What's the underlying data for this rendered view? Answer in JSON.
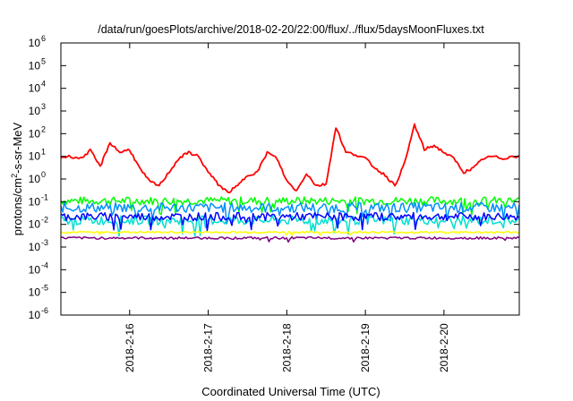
{
  "chart_data": {
    "type": "line",
    "title": "/data/run/goesPlots/archive/2018-02-20/22:00/flux/../flux/5daysMoonFluxes.txt",
    "xlabel": "Coordinated Universal Time (UTC)",
    "ylabel": {
      "base": "protons/cm",
      "superscript": "2",
      "rest": "-s-sr-MeV"
    },
    "y_scale": "log",
    "ylim": [
      1e-06,
      1000000.0
    ],
    "y_ticks": [
      {
        "exp": "-6",
        "value": 1e-06
      },
      {
        "exp": "-5",
        "value": 1e-05
      },
      {
        "exp": "-4",
        "value": 0.0001
      },
      {
        "exp": "-3",
        "value": 0.001
      },
      {
        "exp": "-2",
        "value": 0.01
      },
      {
        "exp": "-1",
        "value": 0.1
      },
      {
        "exp": "0",
        "value": 1
      },
      {
        "exp": "1",
        "value": 10
      },
      {
        "exp": "2",
        "value": 100
      },
      {
        "exp": "3",
        "value": 1000
      },
      {
        "exp": "4",
        "value": 10000
      },
      {
        "exp": "5",
        "value": 100000
      },
      {
        "exp": "6",
        "value": 1000000
      }
    ],
    "y_tick_base": "10",
    "x_range": [
      "2018-02-15 03:00",
      "2018-02-20 23:00"
    ],
    "x_ticks": [
      {
        "label": "2018-2-16",
        "value": "2018-02-16"
      },
      {
        "label": "2018-2-17",
        "value": "2018-02-17"
      },
      {
        "label": "2018-2-18",
        "value": "2018-02-18"
      },
      {
        "label": "2018-2-19",
        "value": "2018-02-19"
      },
      {
        "label": "2018-2-20",
        "value": "2018-02-20"
      }
    ],
    "grid": false,
    "legend": "none",
    "series": [
      {
        "color": "#ff0000",
        "style": "smooth",
        "x": [
          "2018-02-15 03:00",
          "2018-02-15 06:00",
          "2018-02-15 09:00",
          "2018-02-15 12:00",
          "2018-02-15 15:00",
          "2018-02-15 18:00",
          "2018-02-15 21:00",
          "2018-02-16 00:00",
          "2018-02-16 03:00",
          "2018-02-16 06:00",
          "2018-02-16 09:00",
          "2018-02-16 12:00",
          "2018-02-16 15:00",
          "2018-02-16 18:00",
          "2018-02-16 21:00",
          "2018-02-17 00:00",
          "2018-02-17 03:00",
          "2018-02-17 06:00",
          "2018-02-17 09:00",
          "2018-02-17 12:00",
          "2018-02-17 15:00",
          "2018-02-17 18:00",
          "2018-02-17 21:00",
          "2018-02-18 00:00",
          "2018-02-18 03:00",
          "2018-02-18 06:00",
          "2018-02-18 09:00",
          "2018-02-18 12:00",
          "2018-02-18 15:00",
          "2018-02-18 18:00",
          "2018-02-18 21:00",
          "2018-02-19 00:00",
          "2018-02-19 03:00",
          "2018-02-19 06:00",
          "2018-02-19 09:00",
          "2018-02-19 12:00",
          "2018-02-19 15:00",
          "2018-02-19 18:00",
          "2018-02-19 21:00",
          "2018-02-20 00:00",
          "2018-02-20 03:00",
          "2018-02-20 06:00",
          "2018-02-20 09:00",
          "2018-02-20 12:00",
          "2018-02-20 15:00",
          "2018-02-20 18:00",
          "2018-02-20 21:00",
          "2018-02-20 23:00"
        ],
        "values": [
          9,
          10,
          8,
          18,
          3.5,
          40,
          15,
          20,
          3,
          0.8,
          0.5,
          2,
          8,
          15,
          10,
          2,
          0.6,
          0.25,
          0.5,
          1.5,
          2,
          15,
          8,
          0.8,
          0.3,
          1.8,
          0.5,
          0.6,
          200,
          15,
          12,
          8,
          3,
          1.5,
          0.5,
          5,
          250,
          20,
          30,
          15,
          8,
          2,
          3,
          8,
          10,
          8,
          10,
          10
        ]
      },
      {
        "color": "#00ff00",
        "style": "noisy",
        "level": 0.11,
        "spread": 0.18
      },
      {
        "color": "#0090ff",
        "style": "noisy",
        "level": 0.055,
        "spread": 0.22
      },
      {
        "color": "#00e0d0",
        "style": "noisy",
        "level": 0.015,
        "spread": 0.2
      },
      {
        "color": "#0000ff",
        "style": "noisy",
        "level": 0.022,
        "spread": 0.18
      },
      {
        "color": "#ffff00",
        "style": "noisy",
        "level": 0.0045,
        "spread": 0.04
      },
      {
        "color": "#800080",
        "style": "noisy",
        "level": 0.0025,
        "spread": 0.05
      }
    ]
  }
}
